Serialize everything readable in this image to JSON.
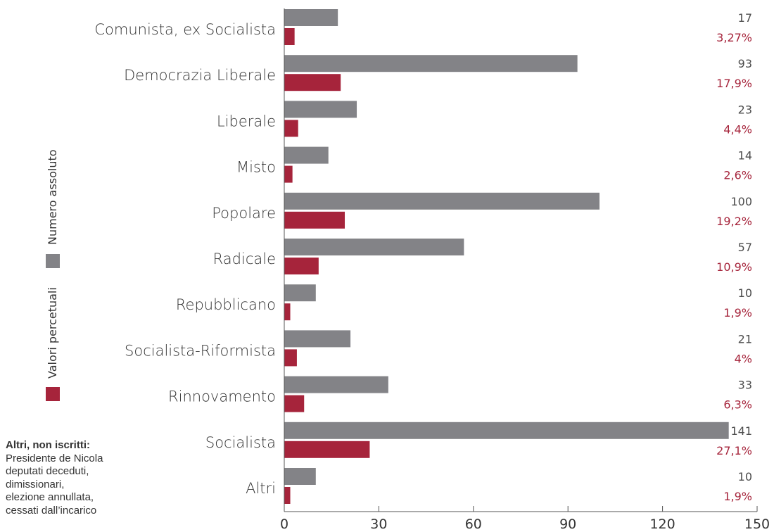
{
  "colors": {
    "absolute": "#838387",
    "percent": "#a6243b",
    "axis": "#555555"
  },
  "legend": {
    "absolute_label": "Numero assoluto",
    "percent_label": "Valori percetuali"
  },
  "footnote": {
    "title": "Altri, non iscritti:",
    "lines": [
      "Presidente de Nicola",
      "deputati deceduti,",
      "dimissionari,",
      "elezione annullata,",
      "cessati dall’incarico"
    ]
  },
  "chart_data": {
    "type": "bar",
    "orientation": "horizontal",
    "categories": [
      "Comunista, ex Socialista",
      "Democrazia Liberale",
      "Liberale",
      "Misto",
      "Popolare",
      "Radicale",
      "Repubblicano",
      "Socialista-Riformista",
      "Rinnovamento",
      "Socialista",
      "Altri"
    ],
    "series": [
      {
        "name": "Numero assoluto",
        "values": [
          17,
          93,
          23,
          14,
          100,
          57,
          10,
          21,
          33,
          141,
          10
        ]
      },
      {
        "name": "Valori percetuali",
        "values": [
          3.27,
          17.9,
          4.4,
          2.6,
          19.2,
          10.9,
          1.9,
          4,
          6.3,
          27.1,
          1.9
        ]
      }
    ],
    "abs_labels": [
      "17",
      "93",
      "23",
      "14",
      "100",
      "57",
      "10",
      "21",
      "33",
      "141",
      "10"
    ],
    "pct_labels": [
      "3,27%",
      "17,9%",
      "4,4%",
      "2,6%",
      "19,2%",
      "10,9%",
      "1,9%",
      "4%",
      "6,3%",
      "27,1%",
      "1,9%"
    ],
    "xlim": [
      0,
      150
    ],
    "xticks": [
      0,
      30,
      60,
      90,
      120,
      150
    ],
    "grid": false,
    "legend_position": "left, vertical"
  }
}
